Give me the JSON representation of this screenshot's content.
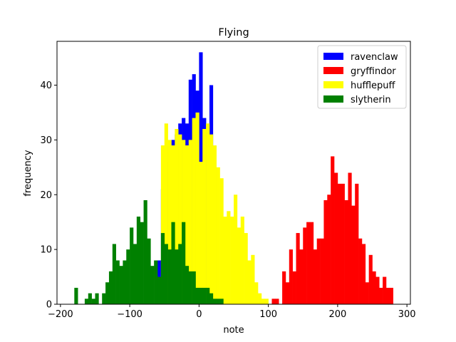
{
  "chart_data": {
    "type": "bar",
    "title": "Flying",
    "xlabel": "note",
    "ylabel": "frequency",
    "xlim": [
      -205,
      305
    ],
    "ylim": [
      0,
      48
    ],
    "xticks": [
      -200,
      -100,
      0,
      100,
      200,
      300
    ],
    "yticks": [
      0,
      10,
      20,
      30,
      40
    ],
    "xtick_labels": [
      "−200",
      "−100",
      "0",
      "100",
      "200",
      "300"
    ],
    "ytick_labels": [
      "0",
      "10",
      "20",
      "30",
      "40"
    ],
    "legend": {
      "placement": "top-right"
    },
    "bin_width": 5,
    "series": [
      {
        "name": "ravenclaw",
        "color": "#0000ff",
        "x": [
          -60,
          -55,
          -50,
          -45,
          -40,
          -35,
          -30,
          -25,
          -20,
          -15,
          -10,
          -5,
          0,
          5,
          10,
          15,
          20
        ],
        "values": [
          8,
          21,
          26,
          29,
          30,
          31,
          33,
          34,
          33,
          41,
          42,
          39,
          46,
          34,
          25,
          40,
          25
        ]
      },
      {
        "name": "gryffindor",
        "color": "#ff0000",
        "x": [
          105,
          110,
          115,
          120,
          125,
          130,
          135,
          140,
          145,
          150,
          155,
          160,
          165,
          170,
          175,
          180,
          185,
          190,
          195,
          200,
          205,
          210,
          215,
          220,
          225,
          230,
          235,
          240,
          245,
          250,
          255,
          260,
          265,
          270,
          275
        ],
        "values": [
          1,
          1,
          0,
          6,
          4,
          10,
          6,
          13,
          10,
          14,
          15,
          15,
          10,
          12,
          12,
          19,
          20,
          27,
          24,
          22,
          22,
          19,
          24,
          18,
          22,
          12,
          11,
          4,
          9,
          6,
          5,
          3,
          5,
          3,
          3
        ]
      },
      {
        "name": "hufflepuff",
        "color": "#ffff00",
        "x": [
          -55,
          -50,
          -45,
          -40,
          -35,
          -30,
          -25,
          -20,
          -15,
          -10,
          -5,
          0,
          5,
          10,
          15,
          20,
          25,
          30,
          35,
          40,
          45,
          50,
          55,
          60,
          65,
          70,
          75,
          80,
          85,
          90,
          95
        ],
        "values": [
          29,
          33,
          30,
          29,
          32,
          31,
          30,
          29,
          30,
          34,
          35,
          26,
          32,
          33,
          31,
          29,
          25,
          23,
          16,
          17,
          16,
          20,
          14,
          16,
          13,
          8,
          9,
          4,
          2,
          1,
          1
        ]
      },
      {
        "name": "slytherin",
        "color": "#008000",
        "x": [
          -180,
          -175,
          -170,
          -165,
          -160,
          -155,
          -150,
          -145,
          -140,
          -135,
          -130,
          -125,
          -120,
          -115,
          -110,
          -105,
          -100,
          -95,
          -90,
          -85,
          -80,
          -75,
          -70,
          -65,
          -60,
          -55,
          -50,
          -45,
          -40,
          -35,
          -30,
          -25,
          -20,
          -15,
          -10,
          -5,
          0,
          5,
          10,
          15,
          20,
          25,
          30,
          35
        ],
        "values": [
          3,
          0,
          0,
          1,
          2,
          1,
          2,
          0,
          2,
          4,
          6,
          11,
          8,
          7,
          8,
          10,
          14,
          11,
          16,
          15,
          19,
          12,
          7,
          8,
          5,
          13,
          11,
          10,
          15,
          10,
          11,
          15,
          7,
          6,
          6,
          3,
          3,
          3,
          3,
          2,
          1,
          1,
          1,
          0
        ]
      }
    ]
  }
}
